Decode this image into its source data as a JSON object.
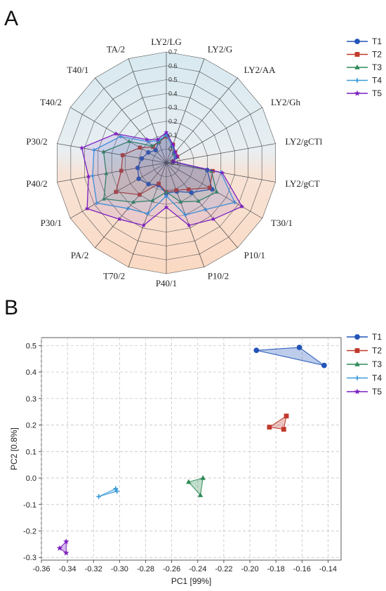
{
  "panel_a": {
    "letter": "A",
    "legend": [
      {
        "name": "T1",
        "color": "#2255b8",
        "marker": "circle"
      },
      {
        "name": "T2",
        "color": "#c0392b",
        "marker": "square"
      },
      {
        "name": "T3",
        "color": "#2e8b57",
        "marker": "triangle"
      },
      {
        "name": "T4",
        "color": "#3a9ad9",
        "marker": "plus"
      },
      {
        "name": "T5",
        "color": "#7a1fbf",
        "marker": "star"
      }
    ]
  },
  "panel_b": {
    "letter": "B",
    "legend": [
      {
        "name": "T1",
        "color": "#2255b8",
        "marker": "circle"
      },
      {
        "name": "T2",
        "color": "#c0392b",
        "marker": "square"
      },
      {
        "name": "T3",
        "color": "#2e8b57",
        "marker": "triangle"
      },
      {
        "name": "T4",
        "color": "#3a9ad9",
        "marker": "plus"
      },
      {
        "name": "T5",
        "color": "#7a1fbf",
        "marker": "star"
      }
    ]
  },
  "chart_data": [
    {
      "type": "radar",
      "categories": [
        "LY2/LG",
        "LY2/G",
        "LY2/AA",
        "LY2/Gh",
        "LY2/gCTl",
        "LY2/gCT",
        "T30/1",
        "P10/1",
        "P10/2",
        "P40/1",
        "T70/2",
        "PA/2",
        "P30/1",
        "P40/2",
        "P30/2",
        "T40/2",
        "T40/1",
        "TA/2"
      ],
      "radial_ticks": [
        "0.7",
        "0.6",
        "0.5",
        "0.4",
        "0.3",
        "0.2",
        "0.1",
        "0",
        "-0.1"
      ],
      "rlim": [
        -0.1,
        0.7
      ],
      "series": [
        {
          "name": "T1",
          "values": [
            0.1,
            0.03,
            -0.01,
            -0.02,
            -0.05,
            0.2,
            0.28,
            0.18,
            0.12,
            0.12,
            0.07,
            0.1,
            0.13,
            0.11,
            0.08,
            0.05,
            0.02,
            0.06
          ]
        },
        {
          "name": "T2",
          "values": [
            0.09,
            0.04,
            0.0,
            -0.01,
            -0.05,
            0.24,
            0.26,
            0.15,
            0.11,
            0.11,
            0.06,
            0.2,
            0.32,
            0.23,
            0.22,
            0.12,
            0.05,
            0.06
          ]
        },
        {
          "name": "T3",
          "values": [
            0.1,
            0.03,
            -0.01,
            -0.02,
            -0.05,
            0.23,
            0.32,
            0.26,
            0.2,
            0.11,
            0.19,
            0.27,
            0.42,
            0.34,
            0.36,
            0.21,
            0.06,
            0.06
          ]
        },
        {
          "name": "T4",
          "values": [
            0.1,
            0.03,
            0.0,
            -0.02,
            -0.05,
            0.3,
            0.47,
            0.34,
            0.3,
            0.14,
            0.29,
            0.33,
            0.48,
            0.44,
            0.43,
            0.28,
            0.1,
            0.07
          ]
        },
        {
          "name": "T5",
          "values": [
            0.12,
            0.04,
            0.0,
            -0.01,
            -0.05,
            0.31,
            0.53,
            0.43,
            0.38,
            0.22,
            0.38,
            0.43,
            0.56,
            0.47,
            0.52,
            0.32,
            0.12,
            0.08
          ]
        }
      ],
      "background": "rings tinted blue (upper) to orange (lower)",
      "legend_position": "top-right"
    },
    {
      "type": "scatter",
      "xlabel": "PC1 [99%]",
      "ylabel": "PC2 [0.8%]",
      "xlim": [
        -0.36,
        -0.13
      ],
      "ylim": [
        -0.31,
        0.53
      ],
      "xticks": [
        "-0.36",
        "-0.34",
        "-0.32",
        "-0.30",
        "-0.28",
        "-0.26",
        "-0.24",
        "-0.22",
        "-0.20",
        "-0.18",
        "-0.16",
        "-0.14"
      ],
      "yticks": [
        "0.5",
        "0.4",
        "0.3",
        "0.2",
        "0.1",
        "0.0",
        "-0.1",
        "-0.2",
        "-0.3"
      ],
      "grid": true,
      "legend_position": "right",
      "series": [
        {
          "name": "T1",
          "points": [
            [
              -0.195,
              0.482
            ],
            [
              -0.162,
              0.493
            ],
            [
              -0.143,
              0.425
            ]
          ]
        },
        {
          "name": "T2",
          "points": [
            [
              -0.172,
              0.234
            ],
            [
              -0.185,
              0.192
            ],
            [
              -0.174,
              0.184
            ]
          ]
        },
        {
          "name": "T3",
          "points": [
            [
              -0.247,
              -0.015
            ],
            [
              -0.236,
              0.0
            ],
            [
              -0.238,
              -0.065
            ]
          ]
        },
        {
          "name": "T4",
          "points": [
            [
              -0.316,
              -0.07
            ],
            [
              -0.303,
              -0.04
            ],
            [
              -0.302,
              -0.05
            ]
          ]
        },
        {
          "name": "T5",
          "points": [
            [
              -0.346,
              -0.265
            ],
            [
              -0.341,
              -0.24
            ],
            [
              -0.341,
              -0.283
            ]
          ]
        }
      ]
    }
  ]
}
